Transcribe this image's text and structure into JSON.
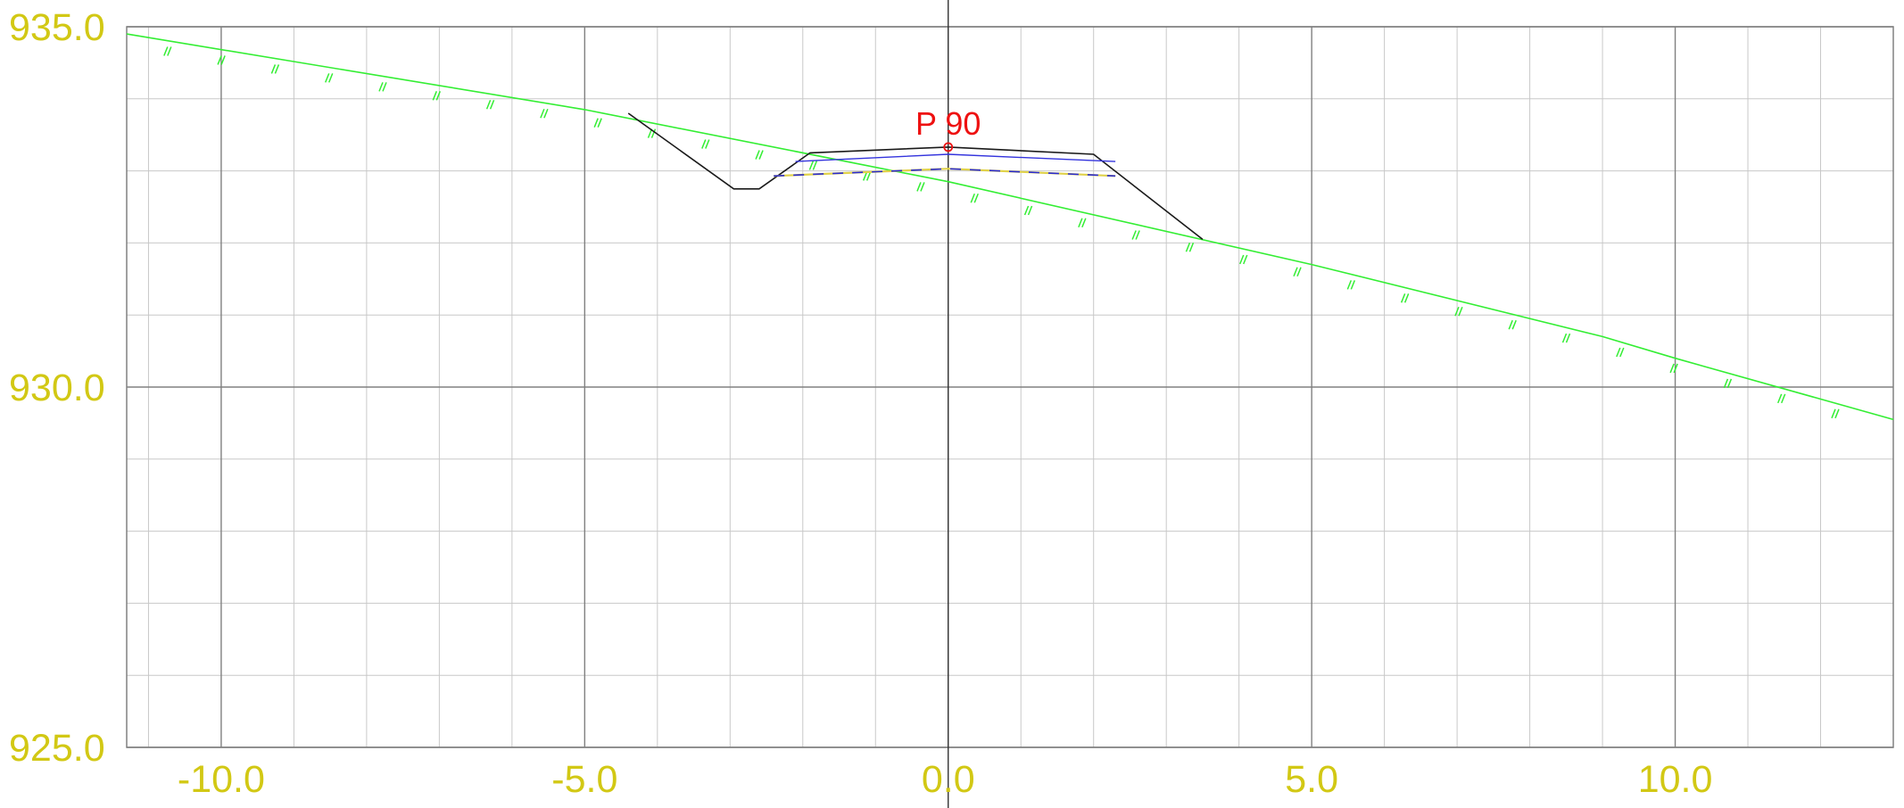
{
  "colors": {
    "background": "#ffffff",
    "grid_major": "#808080",
    "grid_minor": "#c8c8c8",
    "axis_labels": "#d2c814",
    "terrain": "#33ee33",
    "road_section": "#1a1a1a",
    "pavement_layer": "#3333dd",
    "subgrade_line": "#2b2bd0",
    "subgrade_dash": "#e0d24a",
    "point_label": "#ee1111",
    "center_line": "#333333"
  },
  "chart_data": {
    "type": "cross-section",
    "title": "",
    "xlim": [
      -11.3,
      13.0
    ],
    "ylim": [
      925.0,
      935.0
    ],
    "x_ticks": [
      -10.0,
      -5.0,
      0.0,
      5.0,
      10.0
    ],
    "y_ticks": [
      925.0,
      930.0,
      935.0
    ],
    "x_tick_labels": [
      "-10.0",
      "-5.0",
      "0.0",
      "5.0",
      "10.0"
    ],
    "y_tick_labels": [
      "925.0",
      "930.0",
      "935.0"
    ],
    "grid": true,
    "grid_minor_step_x": 1.0,
    "grid_minor_step_y": 1.0,
    "point": {
      "label": "P 90",
      "x": 0.0,
      "y": 933.33
    },
    "series": [
      {
        "kind": "terrain",
        "points": [
          [
            -11.3,
            934.9
          ],
          [
            -5.0,
            933.85
          ],
          [
            0.0,
            932.85
          ],
          [
            5.0,
            931.7
          ],
          [
            9.0,
            930.7
          ],
          [
            10.0,
            930.4
          ],
          [
            13.0,
            929.55
          ]
        ],
        "hatch_spacing": 0.74
      },
      {
        "kind": "road_section",
        "points": [
          [
            -4.4,
            933.8
          ],
          [
            -2.95,
            932.75
          ],
          [
            -2.6,
            932.75
          ],
          [
            -1.9,
            933.25
          ],
          [
            0.0,
            933.33
          ],
          [
            2.0,
            933.23
          ],
          [
            3.5,
            932.05
          ]
        ]
      },
      {
        "kind": "pavement_layer",
        "points": [
          [
            -2.1,
            933.13
          ],
          [
            0.0,
            933.23
          ],
          [
            2.3,
            933.13
          ]
        ]
      },
      {
        "kind": "subgrade",
        "points": [
          [
            -2.4,
            932.93
          ],
          [
            0.0,
            933.03
          ],
          [
            2.3,
            932.93
          ]
        ]
      }
    ]
  }
}
